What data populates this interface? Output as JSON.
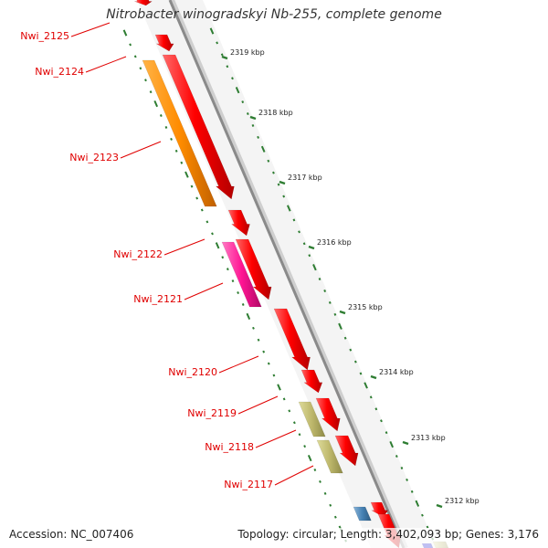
{
  "title": "Nitrobacter winogradskyi Nb-255, complete genome",
  "accession": "Accession: NC_007406",
  "topology": "Topology: circular; Length: 3,402,093 bp; Genes: 3,176",
  "colors": {
    "backbone": "#8a8a8a",
    "tick": "#2e7d32",
    "label": "#e00000",
    "cds_forward": "#ff1010",
    "cds_orange": "#ff8c00",
    "cds_pink": "#ff1493",
    "cds_khaki": "#bdb76b",
    "cds_blue": "#4682b4"
  },
  "scale_ticks": [
    {
      "label": "2319 kbp"
    },
    {
      "label": "2318 kbp"
    },
    {
      "label": "2317 kbp"
    },
    {
      "label": "2316 kbp"
    },
    {
      "label": "2315 kbp"
    },
    {
      "label": "2314 kbp"
    },
    {
      "label": "2313 kbp"
    },
    {
      "label": "2312 kbp"
    }
  ],
  "gene_labels": [
    {
      "label": "Nwi_2125"
    },
    {
      "label": "Nwi_2124"
    },
    {
      "label": "Nwi_2123"
    },
    {
      "label": "Nwi_2122"
    },
    {
      "label": "Nwi_2121"
    },
    {
      "label": "Nwi_2120"
    },
    {
      "label": "Nwi_2119"
    },
    {
      "label": "Nwi_2118"
    },
    {
      "label": "Nwi_2117"
    }
  ]
}
